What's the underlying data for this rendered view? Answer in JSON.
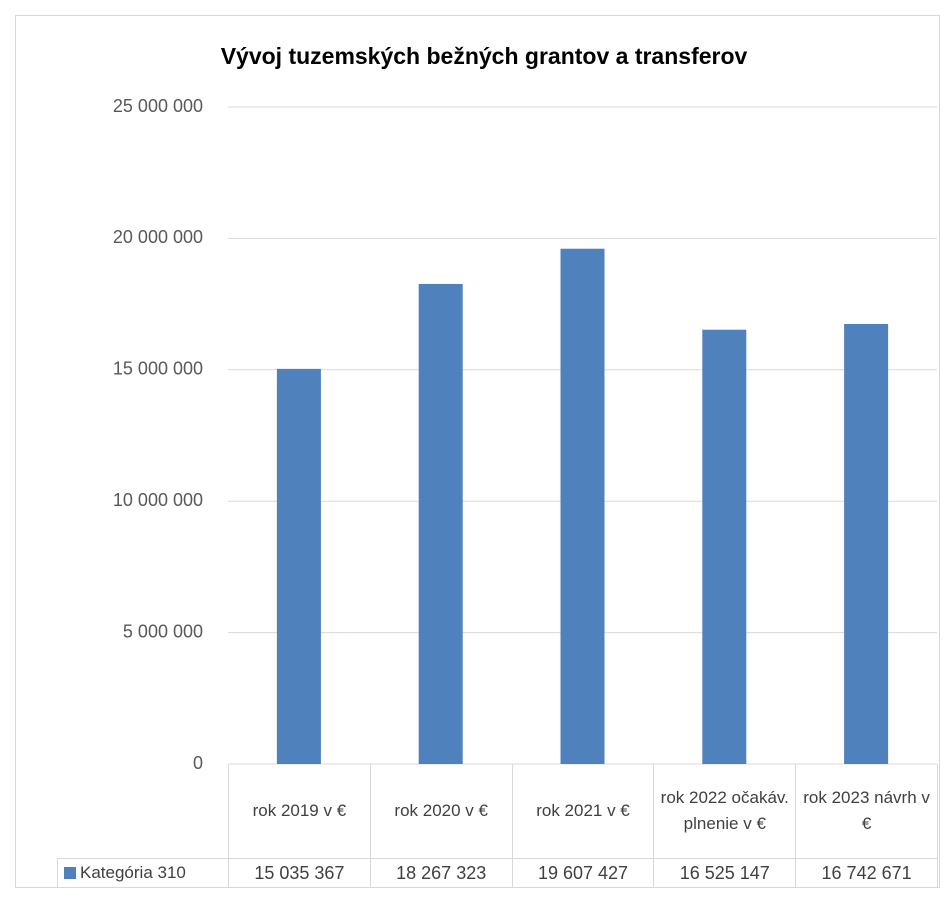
{
  "chart_data": {
    "type": "bar",
    "title": "Vývoj tuzemských  bežných grantov a transferov",
    "categories": [
      "rok 2019 v €",
      "rok 2020 v €",
      "rok 2021 v €",
      "rok 2022 očakáv. plnenie v €",
      "rok 2023 návrh v €"
    ],
    "series": [
      {
        "name": "Kategória 310",
        "color": "#4f81bd",
        "values": [
          15035367,
          18267323,
          19607427,
          16525147,
          16742671
        ],
        "value_labels": [
          "15 035 367",
          "18 267 323",
          "19 607 427",
          "16 525 147",
          "16 742 671"
        ]
      }
    ],
    "ylim": [
      0,
      25000000
    ],
    "yticks": [
      0,
      {
        "value": 5000000,
        "label": "5 000 000"
      },
      {
        "value": 10000000,
        "label": "10 000 000"
      },
      {
        "value": 15000000,
        "label": "15 000 000"
      },
      {
        "value": 20000000,
        "label": "20 000 000"
      },
      {
        "value": 25000000,
        "label": "25 000 000"
      }
    ],
    "grid": true,
    "data_table": true
  }
}
